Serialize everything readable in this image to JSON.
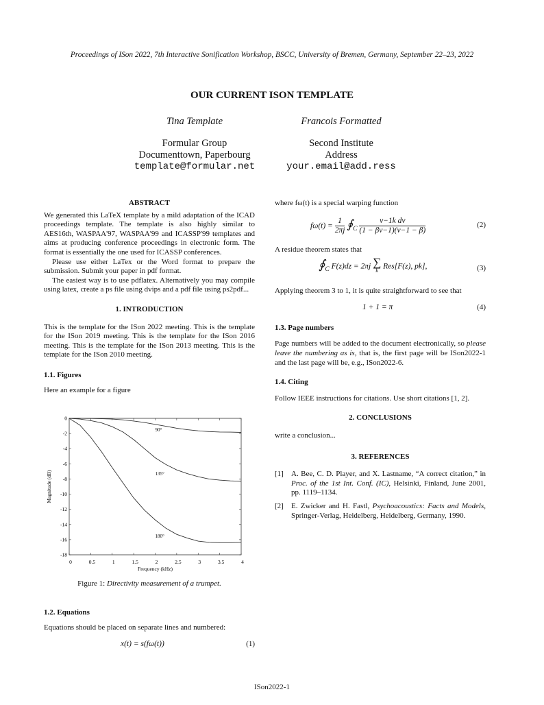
{
  "header": "Proceedings of ISon 2022, 7th Interactive Sonification Workshop, BSCC, University of Bremen, Germany, September 22–23, 2022",
  "title": "OUR CURRENT ISON TEMPLATE",
  "authors": [
    {
      "name": "Tina Template",
      "affil1": "Formular Group",
      "affil2": "Documenttown, Paperbourg",
      "email": "template@formular.net"
    },
    {
      "name": "Francois Formatted",
      "affil1": "Second Institute",
      "affil2": "Address",
      "email": "your.email@add.ress"
    }
  ],
  "abstract": {
    "heading": "ABSTRACT",
    "p1": "We generated this LaTeX template by a mild adaptation of the ICAD proceedings template. The template is also highly similar to AES16th, WASPAA'97, WASPAA'99 and ICASSP'99 templates and aims at producing conference proceedings in electronic form. The format is essentially the one used for ICASSP conferences.",
    "p2": "Please use either LaTex or the Word format to prepare the submission. Submit your paper in pdf format.",
    "p3": "The easiest way is to use pdflatex. Alternatively you may compile using latex, create a ps file using dvips and a pdf file using ps2pdf..."
  },
  "intro": {
    "heading": "1. INTRODUCTION",
    "text": "This is the template for the ISon 2022 meeting. This is the template for the ISon 2019 meeting. This is the template for the ISon 2016 meeting. This is the template for the ISon 2013 meeting. This is the template for the ISon 2010 meeting."
  },
  "figures": {
    "heading": "1.1. Figures",
    "text": "Here an example for a figure",
    "caption_prefix": "Figure 1:",
    "caption": "Directivity measurement of a trumpet."
  },
  "equations": {
    "heading": "1.2. Equations",
    "text": "Equations should be placed on separate lines and numbered:",
    "eq1": "x(t) = s(fω(t))",
    "eq1_num": "(1)",
    "where": "where fω(t) is a special warping function",
    "eq2_lhs": "fω(t) = ",
    "eq2_frac1_num": "1",
    "eq2_frac1_den": "2πj",
    "eq2_int": "∮",
    "eq2_sub": "C",
    "eq2_num": "ν−1k dν",
    "eq2_den": "(1 − βν−1)(ν−1 − β)",
    "eq2_label": "(2)",
    "residue": "A residue theorem states that",
    "eq3": "F(z)dz = 2πj",
    "eq3_sum": "∑",
    "eq3_k": "k",
    "eq3_rest": "Res[F(z), pk],",
    "eq3_label": "(3)",
    "applying": "Applying theorem 3 to 1, it is quite straightforward to see that",
    "eq4": "1 + 1 = π",
    "eq4_label": "(4)"
  },
  "page_numbers": {
    "heading": "1.3. Page numbers",
    "pre": "Page numbers will be added to the document electronically, so ",
    "em": "please leave the numbering as is",
    "post": ", that is, the first page will be ISon2022-1 and the last page will be, e.g., ISon2022-6."
  },
  "citing": {
    "heading": "1.4. Citing",
    "text": "Follow IEEE instructions for citations. Use short citations [1, 2]."
  },
  "conclusions": {
    "heading": "2. CONCLUSIONS",
    "text": "write a conclusion..."
  },
  "references": {
    "heading": "3. REFERENCES",
    "items": [
      {
        "key": "[1]",
        "pre": "A. Bee, C. D. Player, and X. Lastname, “A correct citation,” in ",
        "em": "Proc. of the 1st Int. Conf. (IC)",
        "post": ", Helsinki, Finland, June 2001, pp. 1119–1134."
      },
      {
        "key": "[2]",
        "pre": "E. Zwicker and H. Fastl, ",
        "em": "Psychoacoustics: Facts and Models",
        "post": ", Springer-Verlag, Heidelberg, Heidelberg, Germany, 1990."
      }
    ]
  },
  "footer": "ISon2022-1",
  "chart_data": {
    "type": "line",
    "xlabel": "Frequency (kHz)",
    "ylabel": "Magnitude (dB)",
    "xlim": [
      0,
      4
    ],
    "ylim": [
      -18,
      0
    ],
    "xticks": [
      "0",
      "0.5",
      "1",
      "1.5",
      "2",
      "2.5",
      "3",
      "3.5",
      "4"
    ],
    "yticks": [
      "0",
      "-2",
      "-4",
      "-6",
      "-8",
      "-10",
      "-12",
      "-14",
      "-16",
      "-18"
    ],
    "grid": false,
    "x": [
      0,
      0.25,
      0.5,
      0.75,
      1,
      1.25,
      1.5,
      1.75,
      2,
      2.25,
      2.5,
      2.75,
      3,
      3.25,
      3.5,
      3.75,
      4
    ],
    "series": [
      {
        "name": "90°",
        "values": [
          0,
          0,
          -0.02,
          -0.05,
          -0.1,
          -0.2,
          -0.35,
          -0.55,
          -0.8,
          -1.05,
          -1.3,
          -1.5,
          -1.65,
          -1.75,
          -1.8,
          -1.82,
          -1.85
        ]
      },
      {
        "name": "135°",
        "values": [
          0,
          -0.1,
          -0.3,
          -0.6,
          -1.1,
          -1.8,
          -2.8,
          -4.0,
          -5.2,
          -6.1,
          -6.8,
          -7.3,
          -7.7,
          -8.0,
          -8.15,
          -8.25,
          -8.3
        ]
      },
      {
        "name": "180°",
        "values": [
          0,
          -0.9,
          -2.5,
          -4.4,
          -6.5,
          -8.5,
          -10.5,
          -12.1,
          -13.4,
          -14.5,
          -15.3,
          -15.8,
          -16.2,
          -16.35,
          -16.4,
          -16.4,
          -16.35
        ]
      }
    ]
  }
}
